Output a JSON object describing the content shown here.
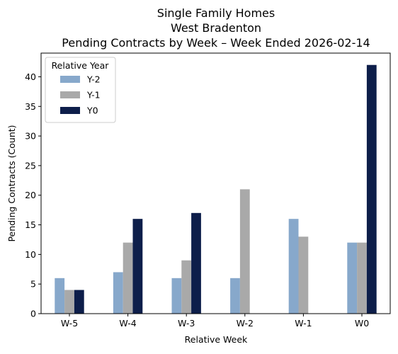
{
  "chart_data": {
    "type": "bar",
    "title_lines": [
      "Single Family Homes",
      "West Bradenton",
      "Pending Contracts by Week – Week Ended 2026-02-14"
    ],
    "xlabel": "Relative Week",
    "ylabel": "Pending Contracts (Count)",
    "categories": [
      "W-5",
      "W-4",
      "W-3",
      "W-2",
      "W-1",
      "W0"
    ],
    "ylim": [
      0,
      44
    ],
    "yticks": [
      0,
      5,
      10,
      15,
      20,
      25,
      30,
      35,
      40
    ],
    "grid": false,
    "legend": {
      "title": "Relative Year",
      "placement": "top-left"
    },
    "series": [
      {
        "name": "Y-2",
        "color": "#87a8cb",
        "values": [
          6,
          7,
          6,
          6,
          16,
          12
        ]
      },
      {
        "name": "Y-1",
        "color": "#a9a9a9",
        "values": [
          4,
          12,
          9,
          21,
          13,
          12
        ]
      },
      {
        "name": "Y0",
        "color": "#0d1e4a",
        "values": [
          4,
          16,
          17,
          0,
          0,
          42
        ]
      }
    ]
  }
}
